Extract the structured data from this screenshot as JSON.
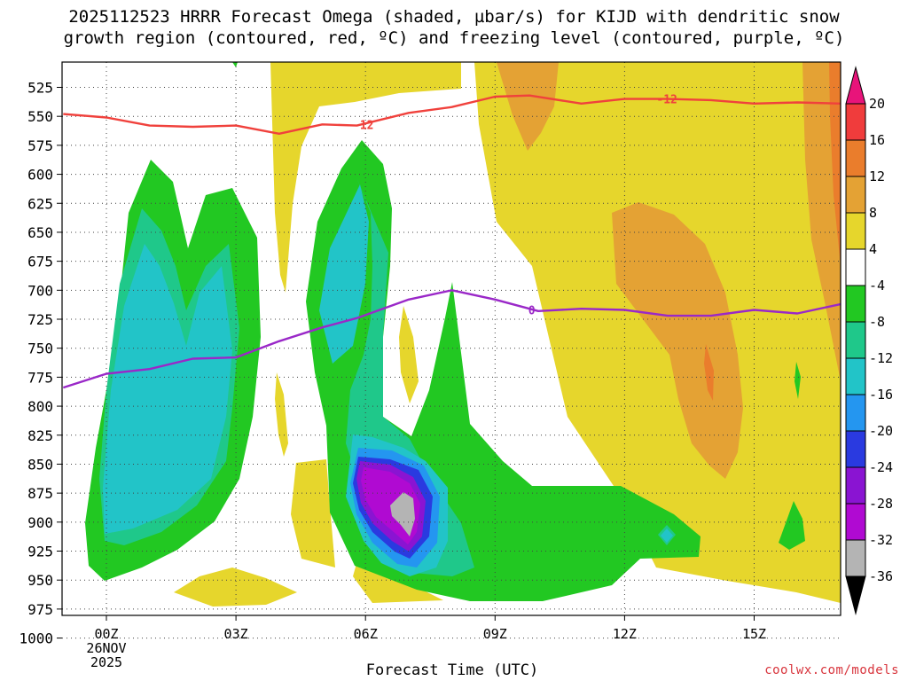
{
  "title": {
    "line1": "2025112523 HRRR Forecast Omega (shaded, µbar/s) for KIJD with dendritic snow",
    "line2": "growth region (contoured, red, ºC) and freezing level (contoured, purple, ºC)"
  },
  "credit": "coolwx.com/models",
  "chart_data": {
    "type": "time-height cross-section",
    "xlabel": "Forecast Time (UTC)",
    "ylabel": "Pressure (hPa)",
    "x_ticks": [
      {
        "hour": 0,
        "label": "00Z",
        "sub": [
          "26NOV",
          "2025"
        ]
      },
      {
        "hour": 3,
        "label": "03Z",
        "sub": []
      },
      {
        "hour": 6,
        "label": "06Z",
        "sub": []
      },
      {
        "hour": 9,
        "label": "09Z",
        "sub": []
      },
      {
        "hour": 12,
        "label": "12Z",
        "sub": []
      },
      {
        "hour": 15,
        "label": "15Z",
        "sub": []
      }
    ],
    "xlim": [
      -1,
      17
    ],
    "y_ticks": [
      525,
      550,
      575,
      600,
      625,
      650,
      675,
      700,
      725,
      750,
      775,
      800,
      825,
      850,
      875,
      900,
      925,
      950,
      975,
      1000
    ],
    "ylim": [
      505,
      1005
    ],
    "colorbar": {
      "labels": [
        "20",
        "16",
        "12",
        "8",
        "4",
        "-4",
        "-8",
        "-12",
        "-16",
        "-20",
        "-24",
        "-28",
        "-32",
        "-36"
      ],
      "bins": [
        {
          "range": "16 to 20",
          "color": "#f03c3c"
        },
        {
          "range": "12 to 16",
          "color": "#ea7d2c"
        },
        {
          "range": "8 to 12",
          "color": "#e4a234"
        },
        {
          "range": "4 to 8",
          "color": "#e6d62c"
        },
        {
          "range": "-4 to 4",
          "color": "#ffffff"
        },
        {
          "range": "-8 to -4",
          "color": "#22c822"
        },
        {
          "range": "-12 to -8",
          "color": "#1fc88a"
        },
        {
          "range": "-16 to -12",
          "color": "#22c4c8"
        },
        {
          "range": "-20 to -16",
          "color": "#2496f0"
        },
        {
          "range": "-24 to -20",
          "color": "#2a3ae0"
        },
        {
          "range": "-28 to -24",
          "color": "#8a14d2"
        },
        {
          "range": "-32 to -28",
          "color": "#b00ad2"
        },
        {
          "range": "-36 to -32",
          "color": "#b4b4b4"
        }
      ],
      "top_arrow_color": "#e8147a",
      "bottom_arrow_color": "#000000"
    },
    "contours": [
      {
        "name": "dendritic snow growth region (-12 ºC)",
        "color": "#f0413c",
        "label": "-12",
        "points": [
          [
            -1.0,
            548
          ],
          [
            0.0,
            551
          ],
          [
            1.0,
            558
          ],
          [
            2.0,
            559
          ],
          [
            3.0,
            558
          ],
          [
            4.0,
            565
          ],
          [
            5.0,
            557
          ],
          [
            5.8,
            558
          ],
          [
            7.0,
            547
          ],
          [
            8.0,
            542
          ],
          [
            9.0,
            533
          ],
          [
            9.8,
            532
          ],
          [
            11.0,
            539
          ],
          [
            12.0,
            535
          ],
          [
            13.0,
            535
          ],
          [
            14.0,
            536
          ],
          [
            15.0,
            539
          ],
          [
            16.0,
            538
          ],
          [
            17.0,
            539
          ]
        ]
      },
      {
        "name": "freezing level (0 ºC)",
        "color": "#9a28c8",
        "label": "0",
        "points": [
          [
            -1.0,
            784
          ],
          [
            0.0,
            772
          ],
          [
            1.0,
            768
          ],
          [
            2.0,
            759
          ],
          [
            3.0,
            758
          ],
          [
            4.0,
            744
          ],
          [
            5.0,
            732
          ],
          [
            5.8,
            724
          ],
          [
            7.0,
            708
          ],
          [
            8.0,
            700
          ],
          [
            9.0,
            708
          ],
          [
            10.0,
            718
          ],
          [
            11.0,
            716
          ],
          [
            12.0,
            717
          ],
          [
            13.0,
            722
          ],
          [
            14.0,
            722
          ],
          [
            15.0,
            717
          ],
          [
            16.0,
            720
          ],
          [
            17.0,
            712
          ]
        ]
      }
    ],
    "ground": {
      "color": "#a0522d",
      "pressure_start": 1002,
      "pressure_end": 990
    }
  }
}
